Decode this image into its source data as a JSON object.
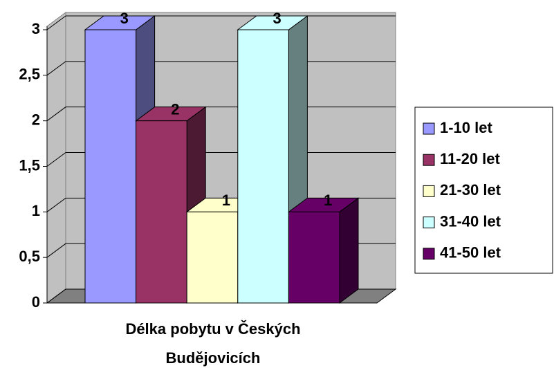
{
  "chart_data": {
    "type": "bar3d",
    "categories": [
      "Délka pobytu v Českých Budějovicích"
    ],
    "series": [
      {
        "name": "1-10 let",
        "color": "#9999ff",
        "values": [
          3
        ]
      },
      {
        "name": "11-20 let",
        "color": "#993366",
        "values": [
          2
        ]
      },
      {
        "name": "21-30 let",
        "color": "#ffffcc",
        "values": [
          1
        ]
      },
      {
        "name": "31-40 let",
        "color": "#ccffff",
        "values": [
          3
        ]
      },
      {
        "name": "41-50 let",
        "color": "#660066",
        "values": [
          1
        ]
      }
    ],
    "ylim": [
      0,
      3
    ],
    "yticks": [
      0,
      {
        "value": 0.5,
        "label": "0,5"
      },
      1,
      {
        "value": 1.5,
        "label": "1,5"
      },
      2,
      {
        "value": 2.5,
        "label": "2,5"
      },
      3
    ],
    "grid": true,
    "legend": "right"
  }
}
